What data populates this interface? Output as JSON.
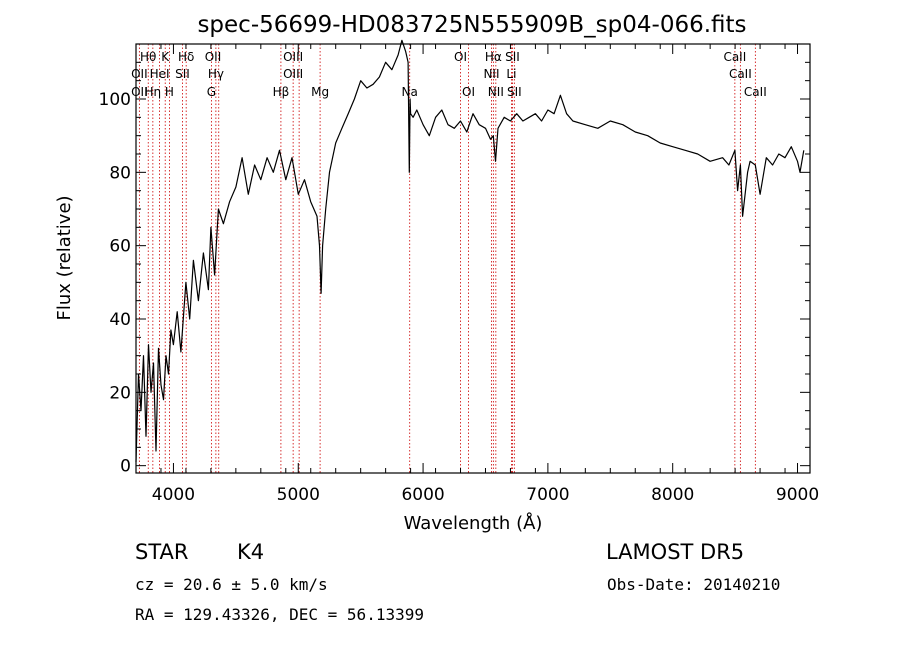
{
  "chart_data": {
    "type": "line",
    "title": "spec-56699-HD083725N555909B_sp04-066.fits",
    "xlabel": "Wavelength (Å)",
    "ylabel": "Flux (relative)",
    "xlim": [
      3700,
      9100
    ],
    "ylim": [
      -2,
      115
    ],
    "x_ticks": [
      4000,
      5000,
      6000,
      7000,
      8000,
      9000
    ],
    "y_ticks": [
      0,
      20,
      40,
      60,
      80,
      100
    ],
    "grid": false,
    "series": [
      {
        "x": [
          3700,
          3720,
          3740,
          3760,
          3780,
          3800,
          3820,
          3840,
          3860,
          3880,
          3900,
          3920,
          3940,
          3960,
          3980,
          4000,
          4030,
          4060,
          4100,
          4130,
          4160,
          4200,
          4240,
          4280,
          4300,
          4330,
          4360,
          4400,
          4450,
          4500,
          4550,
          4600,
          4650,
          4700,
          4750,
          4800,
          4850,
          4900,
          4950,
          5000,
          5050,
          5100,
          5150,
          5170,
          5183,
          5195,
          5220,
          5250,
          5300,
          5350,
          5400,
          5450,
          5500,
          5550,
          5600,
          5650,
          5700,
          5750,
          5800,
          5830,
          5860,
          5880,
          5890,
          5896,
          5900,
          5920,
          5950,
          6000,
          6050,
          6100,
          6150,
          6200,
          6250,
          6300,
          6350,
          6400,
          6450,
          6500,
          6540,
          6563,
          6580,
          6600,
          6650,
          6700,
          6750,
          6800,
          6850,
          6900,
          6950,
          7000,
          7050,
          7100,
          7150,
          7200,
          7300,
          7400,
          7500,
          7600,
          7700,
          7800,
          7900,
          8000,
          8100,
          8200,
          8300,
          8400,
          8450,
          8498,
          8520,
          8542,
          8560,
          8600,
          8620,
          8662,
          8700,
          8750,
          8800,
          8850,
          8900,
          8950,
          9000,
          9020,
          9050
        ],
        "y": [
          1,
          25,
          15,
          30,
          8,
          33,
          20,
          28,
          4,
          32,
          22,
          18,
          30,
          25,
          37,
          33,
          42,
          31,
          50,
          40,
          56,
          45,
          58,
          48,
          65,
          52,
          70,
          66,
          72,
          76,
          84,
          74,
          82,
          78,
          84,
          80,
          86,
          78,
          84,
          74,
          78,
          72,
          68,
          60,
          47,
          60,
          70,
          80,
          88,
          92,
          96,
          100,
          105,
          103,
          104,
          106,
          110,
          108,
          112,
          116,
          113,
          110,
          80,
          100,
          96,
          95,
          97,
          93,
          90,
          95,
          97,
          93,
          92,
          94,
          91,
          96,
          93,
          92,
          89,
          90,
          83,
          92,
          95,
          94,
          96,
          94,
          95,
          96,
          94,
          97,
          96,
          101,
          96,
          94,
          93,
          92,
          94,
          93,
          91,
          90,
          88,
          87,
          86,
          85,
          83,
          84,
          82,
          86,
          75,
          82,
          68,
          80,
          83,
          82,
          74,
          84,
          82,
          85,
          84,
          87,
          83,
          80,
          86
        ]
      }
    ],
    "annotations": [
      {
        "text": "Hθ",
        "x": 3798,
        "row": 0
      },
      {
        "text": "K",
        "x": 3934,
        "row": 0
      },
      {
        "text": "Hδ",
        "x": 4102,
        "row": 0
      },
      {
        "text": "OII",
        "x": 4317,
        "row": 0
      },
      {
        "text": "OIII",
        "x": 4959,
        "row": 0
      },
      {
        "text": "OI",
        "x": 6300,
        "row": 0
      },
      {
        "text": "Hα",
        "x": 6563,
        "row": 0
      },
      {
        "text": "SII",
        "x": 6716,
        "row": 0
      },
      {
        "text": "CaII",
        "x": 8498,
        "row": 0
      },
      {
        "text": "OII",
        "x": 3727,
        "row": 1
      },
      {
        "text": "HeI",
        "x": 3889,
        "row": 1
      },
      {
        "text": "SII",
        "x": 4072,
        "row": 1
      },
      {
        "text": "Hγ",
        "x": 4340,
        "row": 1
      },
      {
        "text": "OIII",
        "x": 4959,
        "row": 1
      },
      {
        "text": "NII",
        "x": 6548,
        "row": 1
      },
      {
        "text": "Li",
        "x": 6708,
        "row": 1
      },
      {
        "text": "CaII",
        "x": 8542,
        "row": 1
      },
      {
        "text": "OII",
        "x": 3727,
        "row": 2
      },
      {
        "text": "Hη",
        "x": 3835,
        "row": 2
      },
      {
        "text": "H",
        "x": 3968,
        "row": 2
      },
      {
        "text": "G",
        "x": 4304,
        "row": 2
      },
      {
        "text": "Hβ",
        "x": 4861,
        "row": 2
      },
      {
        "text": "Mg",
        "x": 5175,
        "row": 2
      },
      {
        "text": "Na",
        "x": 5893,
        "row": 2
      },
      {
        "text": "OI",
        "x": 6364,
        "row": 2
      },
      {
        "text": "NII",
        "x": 6583,
        "row": 2
      },
      {
        "text": "SII",
        "x": 6731,
        "row": 2
      },
      {
        "text": "CaII",
        "x": 8662,
        "row": 2
      }
    ],
    "line_markers": [
      3727,
      3798,
      3835,
      3889,
      3934,
      3968,
      4072,
      4102,
      4304,
      4340,
      4363,
      4861,
      4959,
      5007,
      5175,
      5893,
      6300,
      6364,
      6548,
      6563,
      6583,
      6708,
      6716,
      6731,
      8498,
      8542,
      8662
    ],
    "marker_color": "#cc0000"
  },
  "info": {
    "class_label": "STAR",
    "subclass": "K4",
    "survey": "LAMOST  DR5",
    "cz": "cz = 20.6 ± 5.0 km/s",
    "obs_date": "Obs-Date: 20140210",
    "coords": "RA = 129.43326, DEC =  56.13399"
  }
}
